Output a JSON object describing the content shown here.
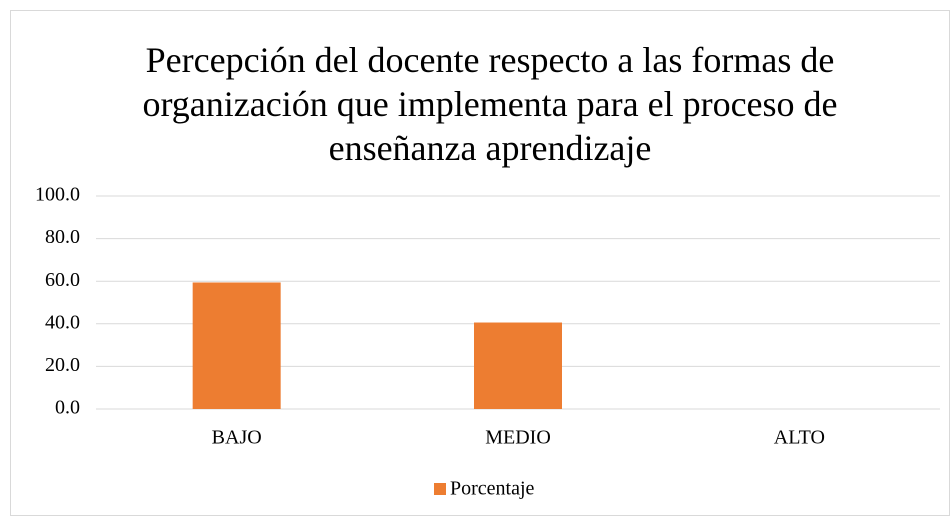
{
  "chart_data": {
    "type": "bar",
    "title": "Percepción del docente respecto a las formas de organización que implementa para el proceso de enseñanza aprendizaje",
    "categories": [
      "BAJO",
      "MEDIO",
      "ALTO"
    ],
    "series": [
      {
        "name": "Porcentaje",
        "color": "#ed7d31",
        "values": [
          59.4,
          40.6,
          0
        ]
      }
    ],
    "ylim": [
      0,
      100
    ],
    "yticks": [
      {
        "value": 0,
        "label": "0.0"
      },
      {
        "value": 20,
        "label": "20.0"
      },
      {
        "value": 40,
        "label": "40.0"
      },
      {
        "value": 60,
        "label": "60.0"
      },
      {
        "value": 80,
        "label": "80.0"
      },
      {
        "value": 100,
        "label": "100.0"
      }
    ],
    "grid": true,
    "legend": "bottom"
  }
}
